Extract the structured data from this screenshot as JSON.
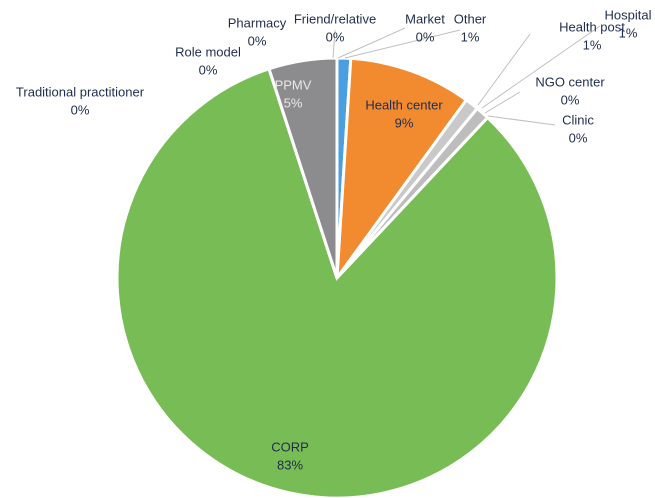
{
  "chart_data": {
    "type": "pie",
    "categories": [
      "Friend/relative",
      "Market",
      "Other",
      "Health center",
      "Health post",
      "Hospital",
      "NGO center",
      "Clinic",
      "CORP",
      "Traditional practitioner",
      "Role model",
      "PPMV",
      "Pharmacy"
    ],
    "values": [
      0,
      0,
      1,
      9,
      1,
      1,
      0,
      0,
      83,
      0,
      0,
      5,
      0
    ],
    "value_labels": [
      "0%",
      "0%",
      "1%",
      "9%",
      "1%",
      "1%",
      "0%",
      "0%",
      "83%",
      "0%",
      "0%",
      "5%",
      "0%"
    ],
    "colors": [
      "#5b9bd5",
      "#a5a5a5",
      "#4a9fe0",
      "#f28b30",
      "#c9c9c9",
      "#bdbdbd",
      "#9e9e9e",
      "#b0b0b0",
      "#78bc55",
      "#e0e0e0",
      "#d0d0d0",
      "#8c8c8e",
      "#d6d6d6"
    ]
  }
}
